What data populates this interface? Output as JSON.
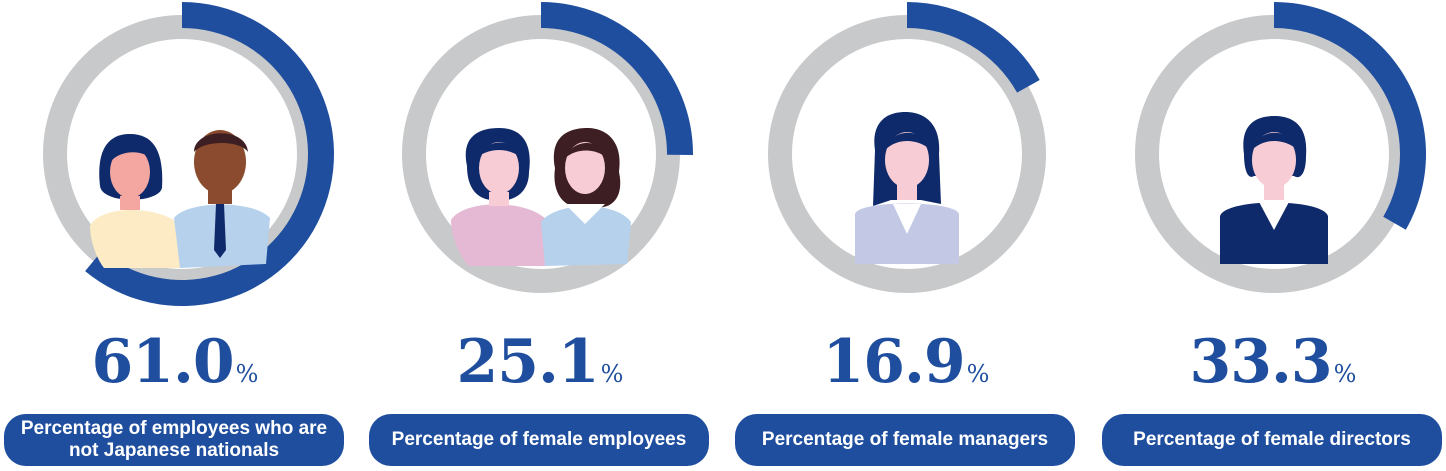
{
  "colors": {
    "accent": "#1f4e9f",
    "track": "#c8c9ca",
    "label_bg": "#1f4e9f",
    "label_text": "#ffffff"
  },
  "chart_data": [
    {
      "type": "pie",
      "values": [
        61.0,
        39.0
      ],
      "value_text": "61.0",
      "unit": "%",
      "label": "Percentage of employees who are not Japanese nationals"
    },
    {
      "type": "pie",
      "values": [
        25.1,
        74.9
      ],
      "value_text": "25.1",
      "unit": "%",
      "label": "Percentage of female employees"
    },
    {
      "type": "pie",
      "values": [
        16.9,
        83.1
      ],
      "value_text": "16.9",
      "unit": "%",
      "label": "Percentage of female managers"
    },
    {
      "type": "pie",
      "values": [
        33.3,
        66.7
      ],
      "value_text": "33.3",
      "unit": "%",
      "label": "Percentage of female directors"
    }
  ],
  "icons": [
    "two-employees-icon",
    "two-women-icon",
    "woman-manager-icon",
    "woman-director-icon"
  ]
}
